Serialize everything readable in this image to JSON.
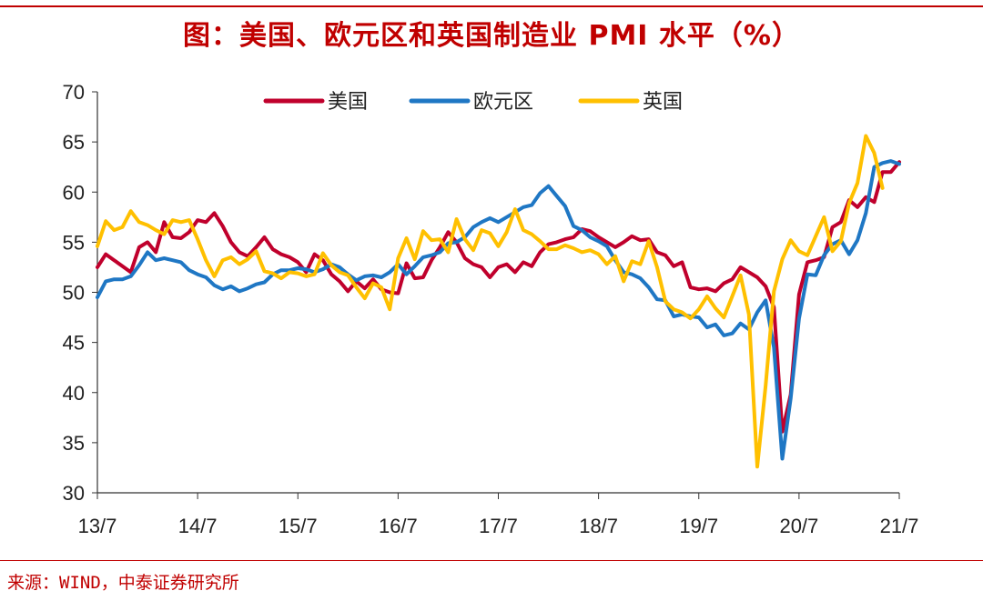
{
  "title": "图：美国、欧元区和英国制造业 PMI 水平（%）",
  "source": "来源：WIND，中泰证券研究所",
  "colors": {
    "accent": "#c00000",
    "us": "#c0002c",
    "eu": "#1f77c4",
    "uk": "#ffc000"
  },
  "chart_data": {
    "type": "line",
    "title": "图：美国、欧元区和英国制造业 PMI 水平（%）",
    "xlabel": "",
    "ylabel": "",
    "ylim": [
      30,
      70
    ],
    "yticks": [
      "30",
      "35",
      "40",
      "45",
      "50",
      "55",
      "60",
      "65",
      "70"
    ],
    "xlim": [
      0,
      96
    ],
    "xticks": [
      {
        "label": "13/7",
        "x": 0
      },
      {
        "label": "14/7",
        "x": 12
      },
      {
        "label": "15/7",
        "x": 24
      },
      {
        "label": "16/7",
        "x": 36
      },
      {
        "label": "17/7",
        "x": 48
      },
      {
        "label": "18/7",
        "x": 60
      },
      {
        "label": "19/7",
        "x": 72
      },
      {
        "label": "20/7",
        "x": 84
      },
      {
        "label": "21/7",
        "x": 96
      }
    ],
    "grid": false,
    "legend_position": "top-center",
    "series": [
      {
        "name": "美国",
        "color": "#c0002c",
        "points": [
          [
            0,
            52.5
          ],
          [
            1,
            53.8
          ],
          [
            2,
            53.2
          ],
          [
            3,
            52.6
          ],
          [
            4,
            52.0
          ],
          [
            5,
            54.5
          ],
          [
            6,
            55.0
          ],
          [
            7,
            54.0
          ],
          [
            8,
            57.0
          ],
          [
            9,
            55.5
          ],
          [
            10,
            55.4
          ],
          [
            11,
            56.0
          ],
          [
            12,
            57.2
          ],
          [
            13,
            57.0
          ],
          [
            14,
            57.9
          ],
          [
            15,
            56.6
          ],
          [
            16,
            55.0
          ],
          [
            17,
            54.0
          ],
          [
            18,
            53.6
          ],
          [
            19,
            54.5
          ],
          [
            20,
            55.5
          ],
          [
            21,
            54.3
          ],
          [
            22,
            53.8
          ],
          [
            23,
            53.5
          ],
          [
            24,
            53.0
          ],
          [
            25,
            52.0
          ],
          [
            26,
            53.8
          ],
          [
            27,
            53.2
          ],
          [
            28,
            51.8
          ],
          [
            29,
            51.1
          ],
          [
            30,
            50.1
          ],
          [
            31,
            51.1
          ],
          [
            32,
            50.4
          ],
          [
            33,
            51.3
          ],
          [
            34,
            50.3
          ],
          [
            35,
            50.0
          ],
          [
            36,
            49.9
          ],
          [
            37,
            52.9
          ],
          [
            38,
            51.4
          ],
          [
            39,
            51.5
          ],
          [
            40,
            53.2
          ],
          [
            41,
            54.5
          ],
          [
            42,
            56.0
          ],
          [
            43,
            55.0
          ],
          [
            44,
            53.4
          ],
          [
            45,
            52.8
          ],
          [
            46,
            52.5
          ],
          [
            47,
            51.5
          ],
          [
            48,
            52.5
          ],
          [
            49,
            52.8
          ],
          [
            50,
            52.0
          ],
          [
            51,
            53.0
          ],
          [
            52,
            52.6
          ],
          [
            53,
            54.0
          ],
          [
            54,
            54.8
          ],
          [
            55,
            55.0
          ],
          [
            56,
            55.3
          ],
          [
            57,
            55.5
          ],
          [
            58,
            56.3
          ],
          [
            59,
            56.1
          ],
          [
            60,
            55.5
          ],
          [
            61,
            55.0
          ],
          [
            62,
            54.5
          ],
          [
            63,
            55.0
          ],
          [
            64,
            55.6
          ],
          [
            65,
            55.2
          ],
          [
            66,
            55.3
          ],
          [
            67,
            54.0
          ],
          [
            68,
            53.7
          ],
          [
            69,
            52.6
          ],
          [
            70,
            53.0
          ],
          [
            71,
            50.5
          ],
          [
            72,
            50.3
          ],
          [
            73,
            50.4
          ],
          [
            74,
            50.1
          ],
          [
            75,
            50.9
          ],
          [
            76,
            51.3
          ],
          [
            77,
            52.5
          ],
          [
            78,
            52.0
          ],
          [
            79,
            51.5
          ],
          [
            80,
            50.6
          ],
          [
            81,
            48.5
          ],
          [
            82,
            36.1
          ],
          [
            83,
            39.8
          ],
          [
            84,
            49.8
          ],
          [
            85,
            53.0
          ],
          [
            86,
            53.2
          ],
          [
            87,
            53.5
          ],
          [
            88,
            56.5
          ],
          [
            89,
            57.0
          ],
          [
            90,
            59.2
          ],
          [
            91,
            58.5
          ],
          [
            92,
            59.5
          ],
          [
            93,
            59.0
          ],
          [
            94,
            62.0
          ],
          [
            95,
            62.0
          ],
          [
            96,
            63.0
          ]
        ]
      },
      {
        "name": "欧元区",
        "color": "#1f77c4",
        "points": [
          [
            0,
            49.5
          ],
          [
            1,
            51.1
          ],
          [
            2,
            51.3
          ],
          [
            3,
            51.3
          ],
          [
            4,
            51.6
          ],
          [
            5,
            52.7
          ],
          [
            6,
            54.0
          ],
          [
            7,
            53.2
          ],
          [
            8,
            53.4
          ],
          [
            9,
            53.2
          ],
          [
            10,
            53.0
          ],
          [
            11,
            52.2
          ],
          [
            12,
            51.8
          ],
          [
            13,
            51.5
          ],
          [
            14,
            50.7
          ],
          [
            15,
            50.3
          ],
          [
            16,
            50.6
          ],
          [
            17,
            50.1
          ],
          [
            18,
            50.4
          ],
          [
            19,
            50.8
          ],
          [
            20,
            51.0
          ],
          [
            21,
            51.8
          ],
          [
            22,
            52.2
          ],
          [
            23,
            52.2
          ],
          [
            24,
            52.4
          ],
          [
            25,
            52.3
          ],
          [
            26,
            52.0
          ],
          [
            27,
            52.3
          ],
          [
            28,
            52.8
          ],
          [
            29,
            52.5
          ],
          [
            30,
            51.8
          ],
          [
            31,
            51.2
          ],
          [
            32,
            51.6
          ],
          [
            33,
            51.7
          ],
          [
            34,
            51.5
          ],
          [
            35,
            52.0
          ],
          [
            36,
            52.8
          ],
          [
            37,
            51.8
          ],
          [
            38,
            52.6
          ],
          [
            39,
            53.5
          ],
          [
            40,
            53.7
          ],
          [
            41,
            54.0
          ],
          [
            42,
            54.9
          ],
          [
            43,
            55.0
          ],
          [
            44,
            55.5
          ],
          [
            45,
            56.5
          ],
          [
            46,
            57.0
          ],
          [
            47,
            57.4
          ],
          [
            48,
            57.0
          ],
          [
            49,
            57.5
          ],
          [
            50,
            58.0
          ],
          [
            51,
            58.5
          ],
          [
            52,
            58.7
          ],
          [
            53,
            59.9
          ],
          [
            54,
            60.6
          ],
          [
            55,
            59.6
          ],
          [
            56,
            58.6
          ],
          [
            57,
            56.6
          ],
          [
            58,
            56.2
          ],
          [
            59,
            55.5
          ],
          [
            60,
            55.1
          ],
          [
            61,
            54.6
          ],
          [
            62,
            53.2
          ],
          [
            63,
            52.0
          ],
          [
            64,
            51.8
          ],
          [
            65,
            51.4
          ],
          [
            66,
            50.5
          ],
          [
            67,
            49.3
          ],
          [
            68,
            49.2
          ],
          [
            69,
            47.6
          ],
          [
            70,
            47.8
          ],
          [
            71,
            47.6
          ],
          [
            72,
            47.5
          ],
          [
            73,
            46.5
          ],
          [
            74,
            46.8
          ],
          [
            75,
            45.7
          ],
          [
            76,
            45.9
          ],
          [
            77,
            46.9
          ],
          [
            78,
            46.3
          ],
          [
            79,
            48.0
          ],
          [
            80,
            49.2
          ],
          [
            81,
            44.5
          ],
          [
            82,
            33.4
          ],
          [
            83,
            39.4
          ],
          [
            84,
            47.4
          ],
          [
            85,
            51.8
          ],
          [
            86,
            51.7
          ],
          [
            87,
            53.7
          ],
          [
            88,
            54.8
          ],
          [
            89,
            55.2
          ],
          [
            90,
            53.8
          ],
          [
            91,
            55.2
          ],
          [
            92,
            57.9
          ],
          [
            93,
            62.5
          ],
          [
            94,
            62.9
          ],
          [
            95,
            63.1
          ],
          [
            96,
            62.8
          ]
        ]
      },
      {
        "name": "英国",
        "color": "#ffc000",
        "points": [
          [
            0,
            54.6
          ],
          [
            1,
            57.1
          ],
          [
            2,
            56.2
          ],
          [
            3,
            56.5
          ],
          [
            4,
            58.1
          ],
          [
            5,
            57.0
          ],
          [
            6,
            56.7
          ],
          [
            7,
            56.2
          ],
          [
            8,
            55.8
          ],
          [
            9,
            57.2
          ],
          [
            10,
            57.0
          ],
          [
            11,
            57.2
          ],
          [
            12,
            55.3
          ],
          [
            13,
            53.2
          ],
          [
            14,
            51.6
          ],
          [
            15,
            53.2
          ],
          [
            16,
            53.5
          ],
          [
            17,
            52.8
          ],
          [
            18,
            53.3
          ],
          [
            19,
            54.1
          ],
          [
            20,
            52.1
          ],
          [
            21,
            51.9
          ],
          [
            22,
            51.4
          ],
          [
            23,
            52.0
          ],
          [
            24,
            51.9
          ],
          [
            25,
            51.6
          ],
          [
            26,
            51.8
          ],
          [
            27,
            53.9
          ],
          [
            28,
            52.7
          ],
          [
            29,
            52.0
          ],
          [
            30,
            51.7
          ],
          [
            31,
            50.5
          ],
          [
            32,
            49.4
          ],
          [
            33,
            50.9
          ],
          [
            34,
            50.5
          ],
          [
            35,
            48.3
          ],
          [
            36,
            53.4
          ],
          [
            37,
            55.4
          ],
          [
            38,
            53.3
          ],
          [
            39,
            56.1
          ],
          [
            40,
            55.2
          ],
          [
            41,
            55.3
          ],
          [
            42,
            54.0
          ],
          [
            43,
            57.3
          ],
          [
            44,
            55.3
          ],
          [
            45,
            54.2
          ],
          [
            46,
            56.2
          ],
          [
            47,
            55.9
          ],
          [
            48,
            54.6
          ],
          [
            49,
            56.0
          ],
          [
            50,
            58.3
          ],
          [
            51,
            56.2
          ],
          [
            52,
            55.8
          ],
          [
            53,
            55.1
          ],
          [
            54,
            54.3
          ],
          [
            55,
            54.3
          ],
          [
            56,
            54.7
          ],
          [
            57,
            54.4
          ],
          [
            58,
            54.0
          ],
          [
            59,
            54.2
          ],
          [
            60,
            53.8
          ],
          [
            61,
            52.8
          ],
          [
            62,
            53.6
          ],
          [
            63,
            51.1
          ],
          [
            64,
            53.1
          ],
          [
            65,
            52.8
          ],
          [
            66,
            55.1
          ],
          [
            67,
            52.5
          ],
          [
            68,
            49.1
          ],
          [
            69,
            48.3
          ],
          [
            70,
            48.0
          ],
          [
            71,
            47.4
          ],
          [
            72,
            48.3
          ],
          [
            73,
            49.6
          ],
          [
            74,
            48.4
          ],
          [
            75,
            47.5
          ],
          [
            76,
            49.6
          ],
          [
            77,
            51.7
          ],
          [
            78,
            47.8
          ],
          [
            79,
            32.6
          ],
          [
            80,
            40.7
          ],
          [
            81,
            50.1
          ],
          [
            82,
            53.3
          ],
          [
            83,
            55.2
          ],
          [
            84,
            54.1
          ],
          [
            85,
            53.7
          ],
          [
            86,
            55.6
          ],
          [
            87,
            57.5
          ],
          [
            88,
            54.1
          ],
          [
            89,
            55.1
          ],
          [
            90,
            58.9
          ],
          [
            91,
            60.9
          ],
          [
            92,
            65.6
          ],
          [
            93,
            63.9
          ],
          [
            94,
            60.4
          ]
        ]
      }
    ]
  }
}
